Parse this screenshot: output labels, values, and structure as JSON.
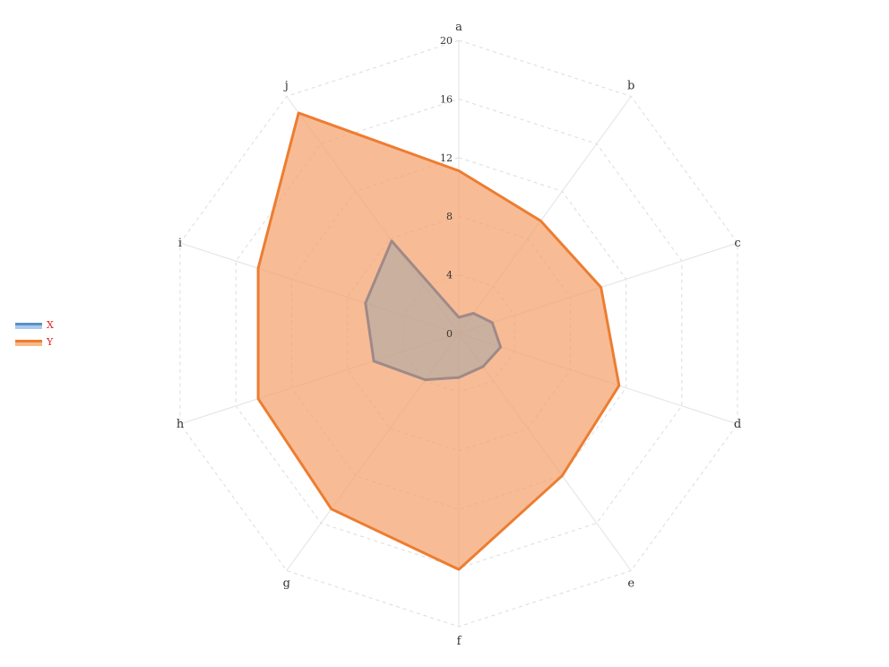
{
  "chart_data": {
    "type": "radar",
    "axes": [
      "a",
      "b",
      "c",
      "d",
      "e",
      "f",
      "g",
      "h",
      "i",
      "j"
    ],
    "rlim": [
      0,
      20
    ],
    "ticks": [
      0,
      4,
      8,
      12,
      16,
      20
    ],
    "grid": true,
    "legend_position": "left",
    "series": [
      {
        "name": "X",
        "values": [
          1.1,
          1.7,
          2.4,
          3.0,
          2.8,
          3.0,
          3.9,
          6.1,
          6.7,
          7.8
        ],
        "line_color": "#a08a88",
        "fill_color": "#a6a6a6",
        "legend_color": "#5b8fc7",
        "legend_fill": "#a9c9ef"
      },
      {
        "name": "Y",
        "values": [
          11.1,
          9.5,
          10.2,
          11.5,
          12.0,
          16.1,
          14.8,
          14.4,
          14.4,
          18.6
        ],
        "line_color": "#ed7d31",
        "fill_color": "#f4a06a",
        "legend_color": "#ed7d31",
        "legend_fill": "#f7b98c"
      }
    ],
    "legend_text_color": "#e0211f"
  }
}
